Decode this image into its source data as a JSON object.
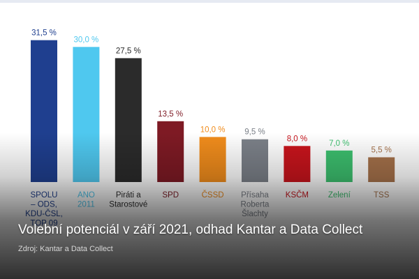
{
  "chart_data": {
    "type": "bar",
    "categories": [
      [
        "SPOLU",
        "– ODS,",
        "KDU-ČSL,",
        "TOP 09"
      ],
      [
        "ANO",
        "2011"
      ],
      [
        "Piráti a",
        "Starostové"
      ],
      [
        "SPD"
      ],
      [
        "ČSSD"
      ],
      [
        "Přísaha",
        "Roberta",
        "Šlachty"
      ],
      [
        "KSČM"
      ],
      [
        "Zelení"
      ],
      [
        "TSS"
      ]
    ],
    "values": [
      31.5,
      30.0,
      27.5,
      13.5,
      10.0,
      9.5,
      8.0,
      7.0,
      5.5
    ],
    "value_labels": [
      "31,5 %",
      "30,0 %",
      "27,5 %",
      "13,5 %",
      "10,0 %",
      "9,5 %",
      "8,0 %",
      "7,0 %",
      "5,5 %"
    ],
    "colors": [
      "#1f3f8f",
      "#4fc8ef",
      "#2b2b2b",
      "#7e1a24",
      "#f08c1c",
      "#7b8088",
      "#c8141c",
      "#3cbf6e",
      "#a5714a"
    ],
    "label_colors": [
      "#1f3f8f",
      "#4fc8ef",
      "#2b2b2b",
      "#7e1a24",
      "#f08c1c",
      "#7b8088",
      "#c8141c",
      "#3cbf6e",
      "#a5714a"
    ],
    "ylim": [
      0,
      35
    ],
    "grid": false
  },
  "caption": {
    "title": "Volební potenciál v září 2021, odhad Kantar a Data Collect",
    "source": "Zdroj: Kantar a Data Collect"
  }
}
